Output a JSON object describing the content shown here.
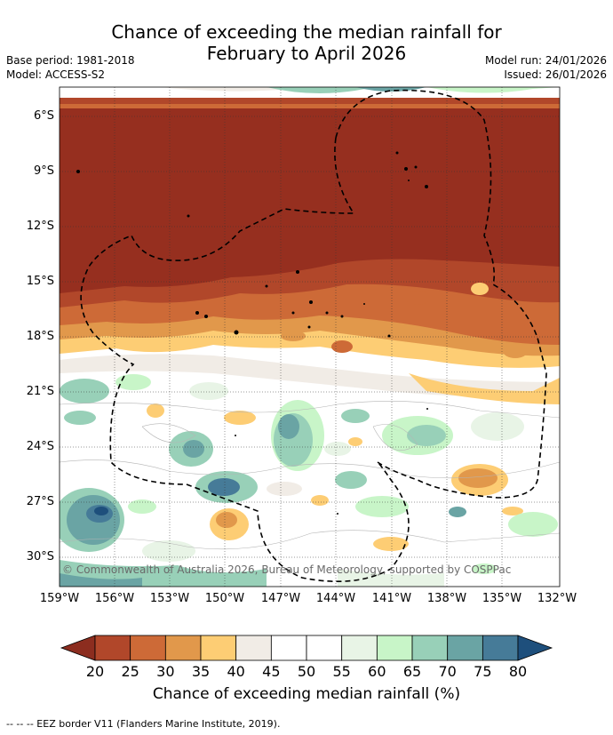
{
  "title_line1": "Chance of exceeding the median rainfall for",
  "title_line2": "February to April 2026",
  "base_period": "Base period: 1981-2018",
  "model": "Model: ACCESS-S2",
  "model_run": "Model run: 24/01/2026",
  "issued": "Issued: 26/01/2026",
  "copyright": "© Commonwealth of Australia 2026, Bureau of Meteorology, supported by COSPPac",
  "lat_labels": [
    "6°S",
    "9°S",
    "12°S",
    "15°S",
    "18°S",
    "21°S",
    "24°S",
    "27°S",
    "30°S"
  ],
  "lon_labels": [
    "159°W",
    "156°W",
    "153°W",
    "150°W",
    "147°W",
    "144°W",
    "141°W",
    "138°W",
    "135°W",
    "132°W"
  ],
  "colorbar": {
    "ticks": [
      "20",
      "25",
      "30",
      "35",
      "40",
      "45",
      "50",
      "55",
      "60",
      "65",
      "70",
      "75",
      "80"
    ],
    "colors": [
      "#8c2d1f",
      "#b1472a",
      "#cd6a37",
      "#e1984b",
      "#fdcd74",
      "#f1ece6",
      "#ffffff",
      "#ffffff",
      "#e8f4e6",
      "#c8f5c8",
      "#98d0b8",
      "#6aa4a4",
      "#467b98",
      "#1e4f7c"
    ],
    "label": "Chance of exceeding median rainfall (%)"
  },
  "footer": "--  --  -- EEZ border V11 (Flanders Marine Institute, 2019)."
}
